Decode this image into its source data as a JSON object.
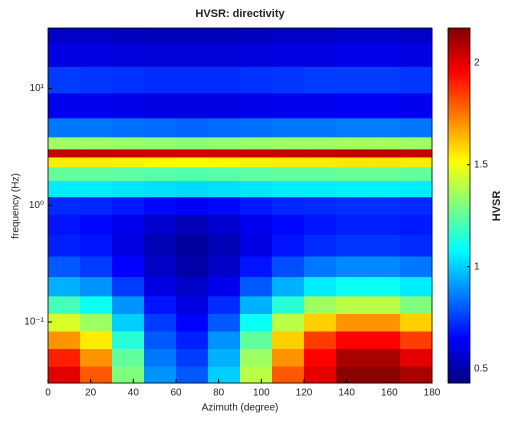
{
  "chart_data": {
    "type": "heatmap",
    "title": "HVSR: directivity",
    "xlabel": "Azimuth (degree)",
    "ylabel": "frequency (Hz)",
    "colorbar_label": "HVSR",
    "colormap": "jet",
    "x": [
      7.5,
      22.5,
      37.5,
      52.5,
      67.5,
      82.5,
      97.5,
      112.5,
      127.5,
      142.5,
      157.5,
      172.5
    ],
    "y": [
      0.035,
      0.05,
      0.07,
      0.1,
      0.14,
      0.2,
      0.3,
      0.45,
      0.7,
      1.0,
      1.4,
      1.9,
      2.4,
      2.8,
      3.3,
      4.5,
      7,
      12,
      20,
      30
    ],
    "z": [
      [
        2.0,
        1.8,
        1.3,
        0.9,
        0.8,
        1.0,
        1.4,
        1.8,
        2.0,
        2.15,
        2.15,
        2.1
      ],
      [
        1.9,
        1.7,
        1.25,
        0.85,
        0.75,
        0.95,
        1.35,
        1.7,
        1.95,
        2.1,
        2.1,
        2.0
      ],
      [
        1.7,
        1.55,
        1.15,
        0.8,
        0.7,
        0.9,
        1.25,
        1.6,
        1.85,
        1.95,
        1.95,
        1.85
      ],
      [
        1.45,
        1.35,
        1.0,
        0.75,
        0.65,
        0.8,
        1.1,
        1.4,
        1.6,
        1.7,
        1.7,
        1.6
      ],
      [
        1.2,
        1.1,
        0.9,
        0.68,
        0.6,
        0.72,
        0.95,
        1.15,
        1.35,
        1.4,
        1.4,
        1.3
      ],
      [
        0.95,
        0.9,
        0.75,
        0.6,
        0.55,
        0.62,
        0.8,
        0.95,
        1.05,
        1.1,
        1.1,
        1.05
      ],
      [
        0.8,
        0.75,
        0.65,
        0.55,
        0.5,
        0.55,
        0.68,
        0.78,
        0.85,
        0.88,
        0.88,
        0.85
      ],
      [
        0.7,
        0.68,
        0.6,
        0.52,
        0.48,
        0.52,
        0.6,
        0.68,
        0.72,
        0.74,
        0.74,
        0.72
      ],
      [
        0.68,
        0.66,
        0.62,
        0.56,
        0.52,
        0.56,
        0.62,
        0.66,
        0.68,
        0.7,
        0.7,
        0.69
      ],
      [
        0.72,
        0.71,
        0.69,
        0.66,
        0.64,
        0.66,
        0.69,
        0.71,
        0.72,
        0.73,
        0.73,
        0.72
      ],
      [
        1.05,
        1.05,
        1.04,
        1.03,
        1.02,
        1.03,
        1.04,
        1.05,
        1.05,
        1.06,
        1.06,
        1.05
      ],
      [
        1.25,
        1.25,
        1.24,
        1.23,
        1.22,
        1.23,
        1.24,
        1.25,
        1.25,
        1.26,
        1.26,
        1.25
      ],
      [
        1.55,
        1.55,
        1.54,
        1.53,
        1.52,
        1.53,
        1.54,
        1.55,
        1.55,
        1.56,
        1.56,
        1.55
      ],
      [
        2.05,
        2.05,
        2.04,
        2.03,
        2.02,
        2.03,
        2.04,
        2.05,
        2.05,
        2.06,
        2.06,
        2.05
      ],
      [
        1.35,
        1.35,
        1.34,
        1.33,
        1.32,
        1.33,
        1.34,
        1.35,
        1.35,
        1.36,
        1.36,
        1.35
      ],
      [
        0.85,
        0.85,
        0.84,
        0.83,
        0.82,
        0.83,
        0.84,
        0.85,
        0.85,
        0.86,
        0.86,
        0.85
      ],
      [
        0.62,
        0.62,
        0.61,
        0.6,
        0.6,
        0.6,
        0.61,
        0.62,
        0.62,
        0.63,
        0.63,
        0.62
      ],
      [
        0.75,
        0.74,
        0.73,
        0.72,
        0.72,
        0.72,
        0.73,
        0.74,
        0.75,
        0.75,
        0.75,
        0.74
      ],
      [
        0.6,
        0.6,
        0.59,
        0.58,
        0.58,
        0.58,
        0.59,
        0.6,
        0.6,
        0.61,
        0.61,
        0.6
      ],
      [
        0.55,
        0.55,
        0.54,
        0.53,
        0.53,
        0.53,
        0.54,
        0.55,
        0.55,
        0.56,
        0.56,
        0.55
      ]
    ],
    "xlim": [
      0,
      180
    ],
    "xticks": [
      0,
      20,
      40,
      60,
      80,
      100,
      120,
      140,
      160,
      180
    ],
    "ylim": [
      0.03,
      33
    ],
    "yscale": "log",
    "yticks": [
      {
        "value": 0.1,
        "label": "10⁻¹"
      },
      {
        "value": 1,
        "label": "10⁰"
      },
      {
        "value": 10,
        "label": "10¹"
      }
    ],
    "clim": [
      0.43,
      2.17
    ],
    "cticks": [
      0.5,
      1,
      1.5,
      2
    ]
  }
}
